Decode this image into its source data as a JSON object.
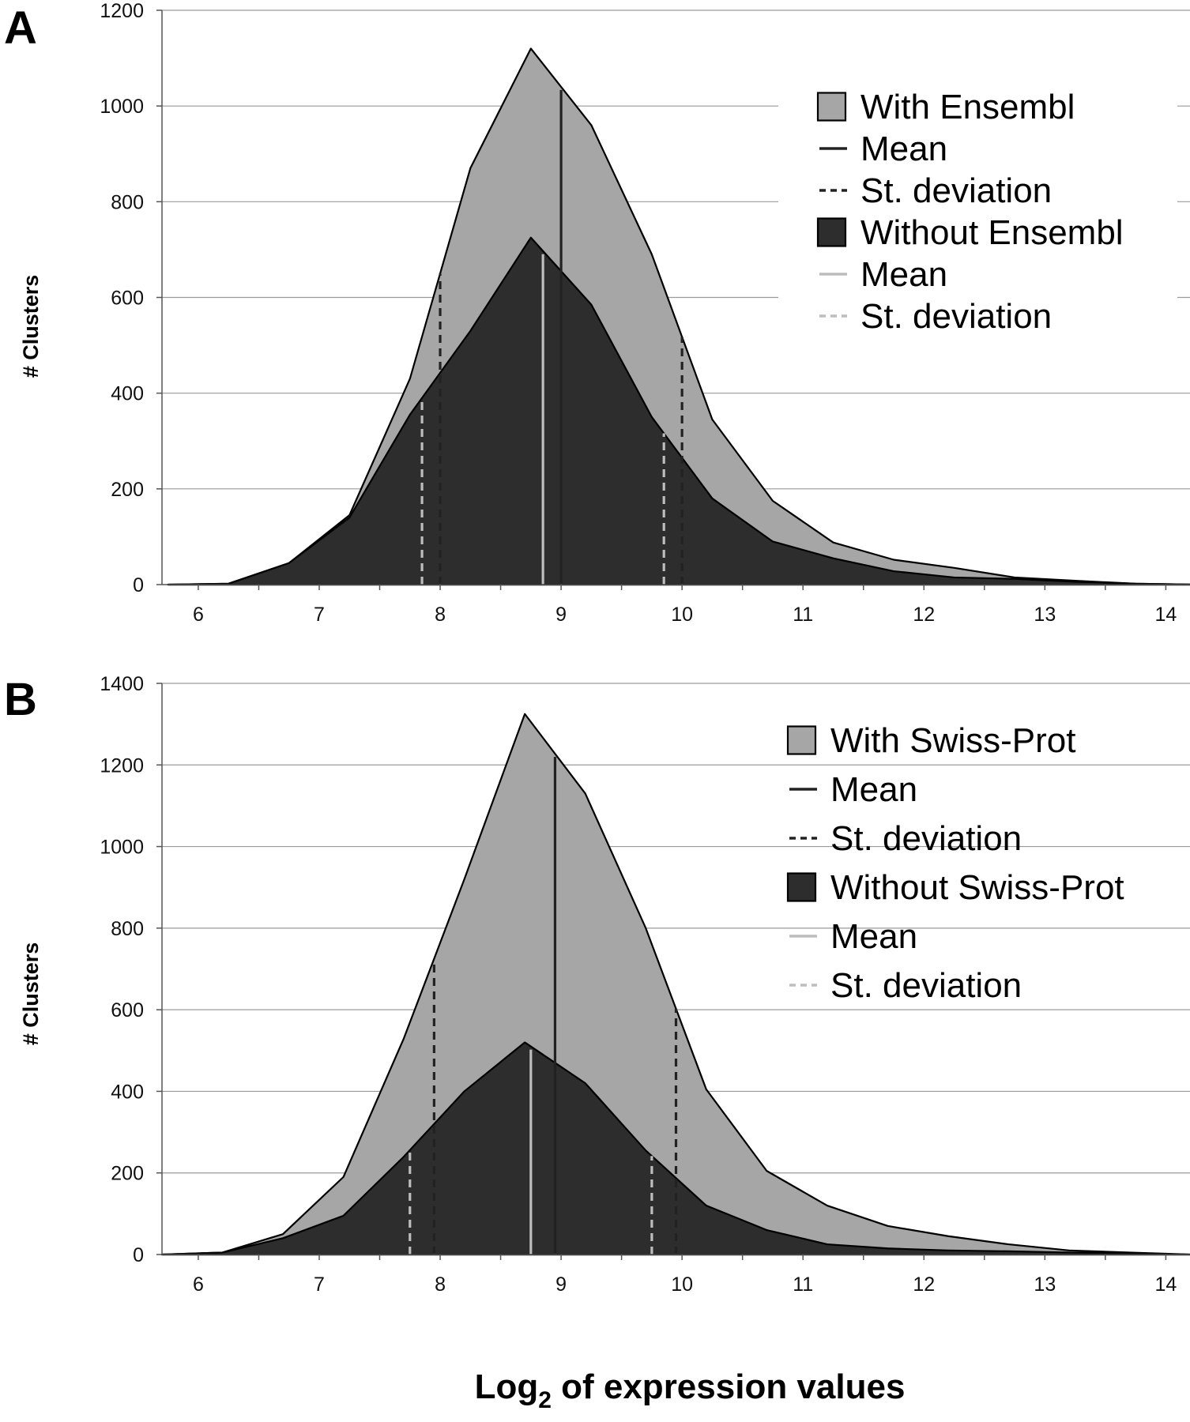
{
  "chart_data": [
    {
      "type": "area",
      "panel": "A",
      "xlabel": "",
      "ylabel": "# Clusters",
      "xlim": [
        5.7,
        14.2
      ],
      "ylim": [
        0,
        1200
      ],
      "xticks": [
        6,
        7,
        8,
        9,
        10,
        11,
        12,
        13,
        14
      ],
      "yticks": [
        0,
        200,
        400,
        600,
        800,
        1000,
        1200
      ],
      "grid": true,
      "legend_position": "top-right",
      "colors": {
        "with_fill": "#a6a6a6",
        "without_fill": "#2d2d2d",
        "with_lines": "#222222",
        "without_lines": "#bdbdbd"
      },
      "legend": [
        "With Ensembl",
        "Mean",
        "St. deviation",
        "Without Ensembl",
        "Mean",
        "St. deviation"
      ],
      "series": [
        {
          "name": "With Ensembl",
          "x": [
            5.75,
            6.25,
            6.75,
            7.25,
            7.75,
            8.25,
            8.75,
            9.25,
            9.75,
            10.25,
            10.75,
            11.25,
            11.75,
            12.25,
            12.75,
            13.25,
            13.75,
            14.25
          ],
          "values": [
            0,
            2,
            45,
            145,
            430,
            870,
            1120,
            960,
            690,
            345,
            175,
            88,
            52,
            35,
            15,
            8,
            2,
            0
          ]
        },
        {
          "name": "Without Ensembl",
          "x": [
            5.75,
            6.25,
            6.75,
            7.25,
            7.75,
            8.25,
            8.75,
            9.25,
            9.75,
            10.25,
            10.75,
            11.25,
            11.75,
            12.25,
            12.75,
            13.25,
            13.75,
            14.25
          ],
          "values": [
            0,
            2,
            45,
            140,
            355,
            530,
            725,
            585,
            350,
            180,
            90,
            55,
            28,
            15,
            12,
            6,
            2,
            0
          ]
        }
      ],
      "markers": {
        "with_mean": 9.0,
        "with_sd": [
          8.0,
          10.0
        ],
        "without_mean": 8.85,
        "without_sd": [
          7.85,
          9.85
        ]
      }
    },
    {
      "type": "area",
      "panel": "B",
      "xlabel": "Log2 of expression values",
      "ylabel": "# Clusters",
      "xlim": [
        5.7,
        14.2
      ],
      "ylim": [
        0,
        1400
      ],
      "xticks": [
        6,
        7,
        8,
        9,
        10,
        11,
        12,
        13,
        14
      ],
      "yticks": [
        0,
        200,
        400,
        600,
        800,
        1000,
        1200,
        1400
      ],
      "grid": true,
      "legend_position": "top-right",
      "colors": {
        "with_fill": "#a6a6a6",
        "without_fill": "#2d2d2d",
        "with_lines": "#222222",
        "without_lines": "#bdbdbd"
      },
      "legend": [
        "With Swiss-Prot",
        "Mean",
        "St. deviation",
        "Without Swiss-Prot",
        "Mean",
        "St. deviation"
      ],
      "series": [
        {
          "name": "With Swiss-Prot",
          "x": [
            5.7,
            6.2,
            6.7,
            7.2,
            7.7,
            8.2,
            8.7,
            9.2,
            9.7,
            10.2,
            10.7,
            11.2,
            11.7,
            12.2,
            12.7,
            13.2,
            13.7,
            14.2
          ],
          "values": [
            0,
            5,
            50,
            190,
            530,
            920,
            1325,
            1130,
            800,
            405,
            205,
            120,
            70,
            45,
            25,
            10,
            5,
            0
          ]
        },
        {
          "name": "Without Swiss-Prot",
          "x": [
            5.7,
            6.2,
            6.7,
            7.2,
            7.7,
            8.2,
            8.7,
            9.2,
            9.7,
            10.2,
            10.7,
            11.2,
            11.7,
            12.2,
            12.7,
            13.2,
            13.7,
            14.2
          ],
          "values": [
            0,
            5,
            40,
            95,
            240,
            400,
            520,
            420,
            255,
            120,
            60,
            25,
            15,
            10,
            8,
            5,
            3,
            0
          ]
        }
      ],
      "markers": {
        "with_mean": 8.95,
        "with_sd": [
          7.95,
          9.95
        ],
        "without_mean": 8.75,
        "without_sd": [
          7.75,
          9.75
        ]
      }
    }
  ],
  "x_title": {
    "main": "Log",
    "sub": "2",
    "rest": " of expression values"
  }
}
